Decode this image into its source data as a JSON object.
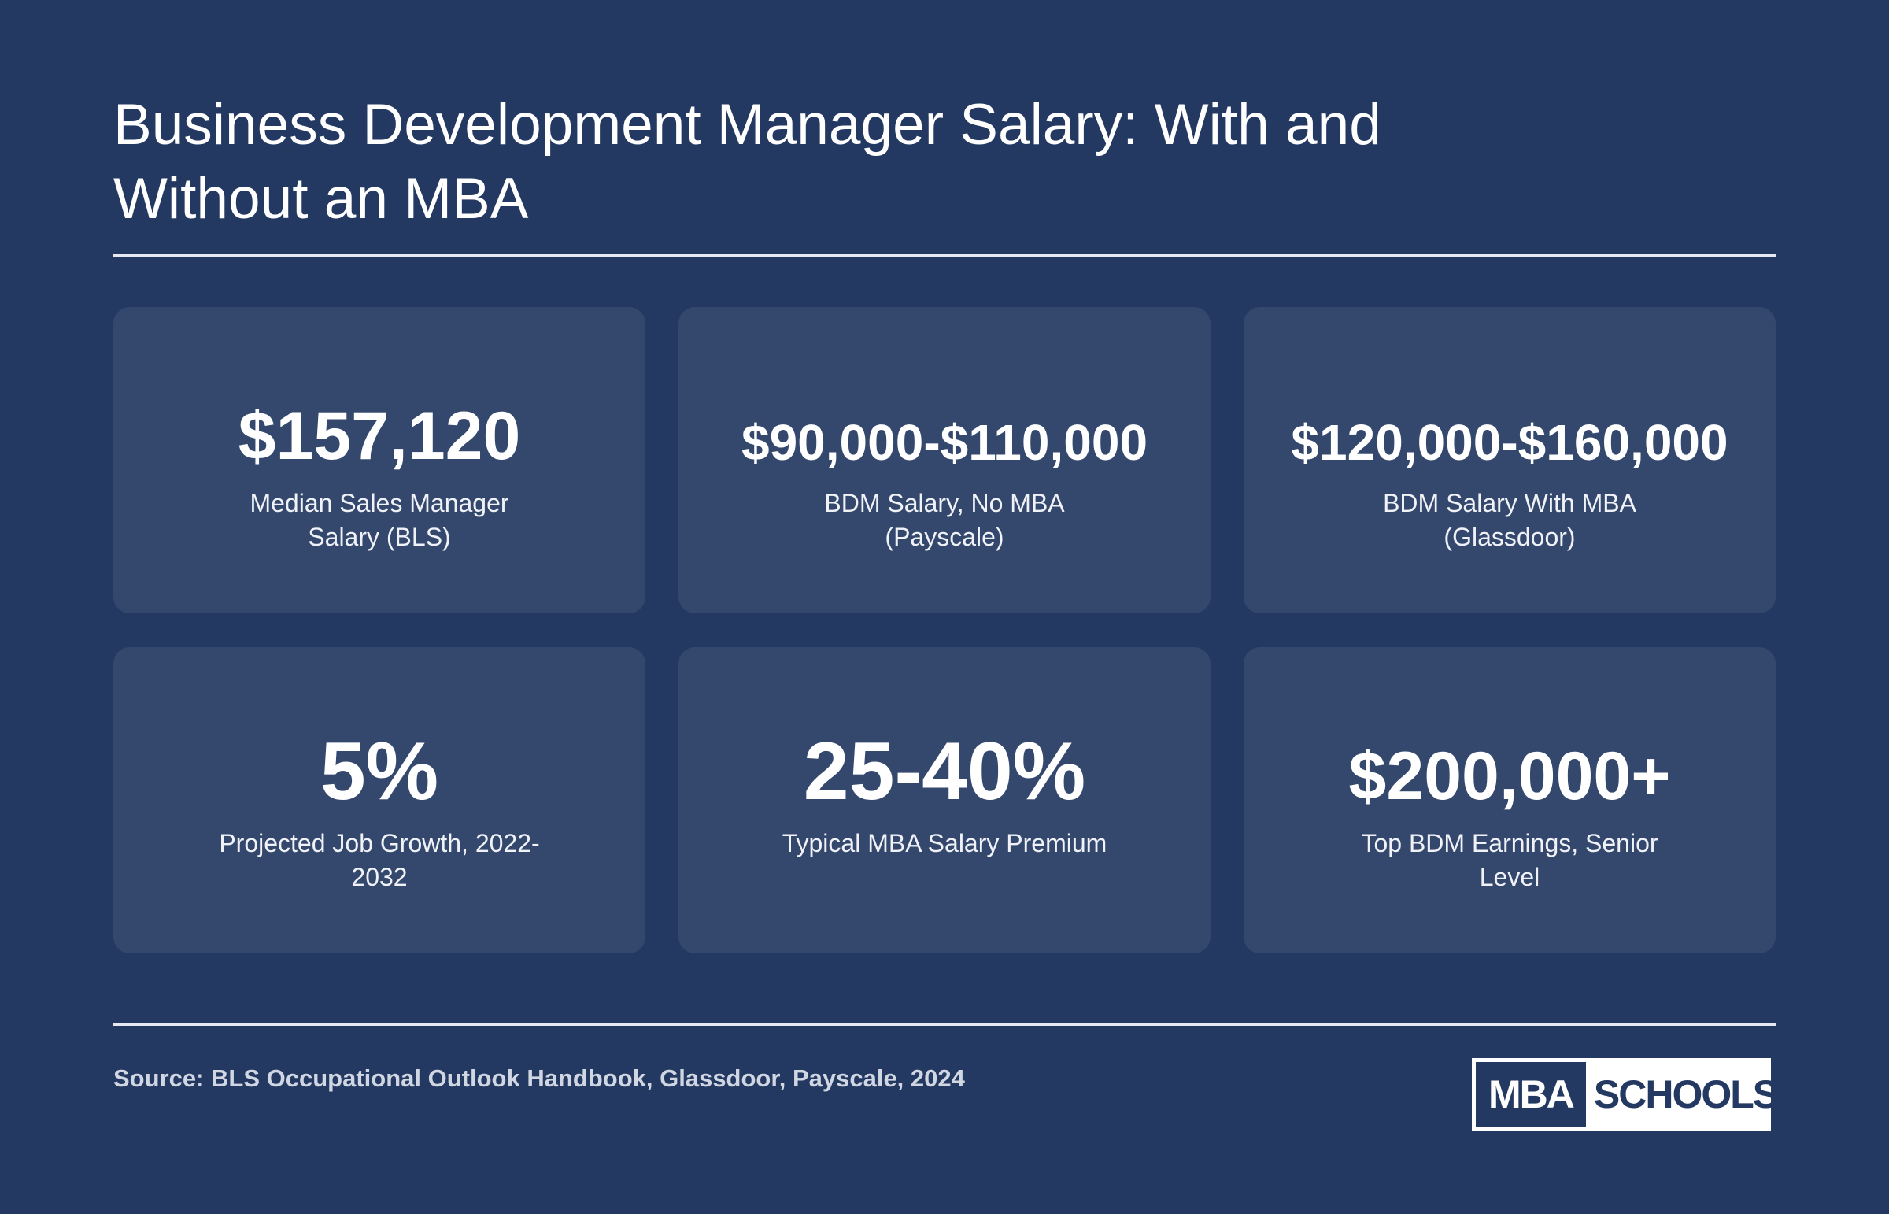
{
  "header": {
    "title": "Business Development Manager Salary: With and Without an MBA"
  },
  "stats": [
    {
      "value": "$157,120",
      "label": "Median Sales Manager Salary (BLS)"
    },
    {
      "value": "$90,000-$110,000",
      "label": "BDM Salary, No MBA (Payscale)"
    },
    {
      "value": "$120,000-$160,000",
      "label": "BDM Salary With MBA (Glassdoor)"
    },
    {
      "value": "5%",
      "label": "Projected Job Growth, 2022-2032"
    },
    {
      "value": "25-40%",
      "label": "Typical MBA Salary Premium"
    },
    {
      "value": "$200,000+",
      "label": "Top BDM Earnings, Senior Level"
    }
  ],
  "footer": {
    "source": "Source: BLS Occupational Outlook Handbook, Glassdoor, Payscale, 2024",
    "logo": {
      "left": "MBA",
      "right": "SCHOOLS"
    }
  }
}
